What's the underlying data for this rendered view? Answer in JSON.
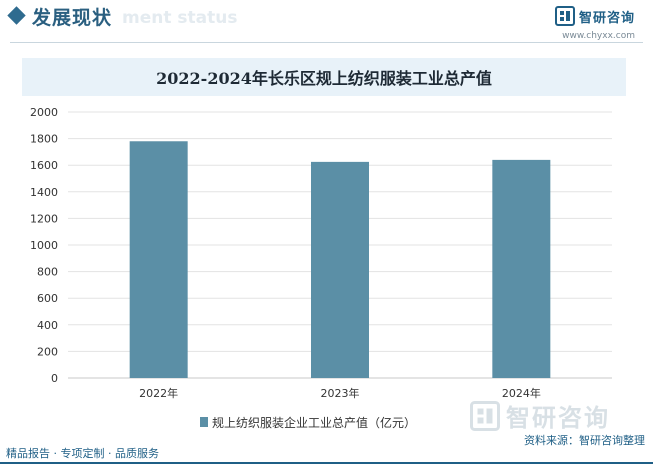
{
  "header": {
    "title": "发展现状",
    "ghost_text": "ment status",
    "brand_name": "智研咨询",
    "brand_url": "www.chyxx.com"
  },
  "chart_data": {
    "type": "bar",
    "title": "2022-2024年长乐区规上纺织服装工业总产值",
    "categories": [
      "2022年",
      "2023年",
      "2024年"
    ],
    "series": [
      {
        "name": "规上纺织服装企业工业总产值（亿元）",
        "values": [
          1780,
          1625,
          1640
        ]
      }
    ],
    "ylim": [
      0,
      2000
    ],
    "yticks": [
      "0",
      "200",
      "400",
      "600",
      "800",
      "1000",
      "1200",
      "1400",
      "1600",
      "1800",
      "2000"
    ],
    "grid": true,
    "legend_position": "bottom",
    "bar_color": "#5b8fa6"
  },
  "footer": {
    "left": "精品报告 · 专项定制 · 品质服务",
    "right": "资料来源：智研咨询整理"
  },
  "watermark": {
    "text": "智研咨询"
  }
}
